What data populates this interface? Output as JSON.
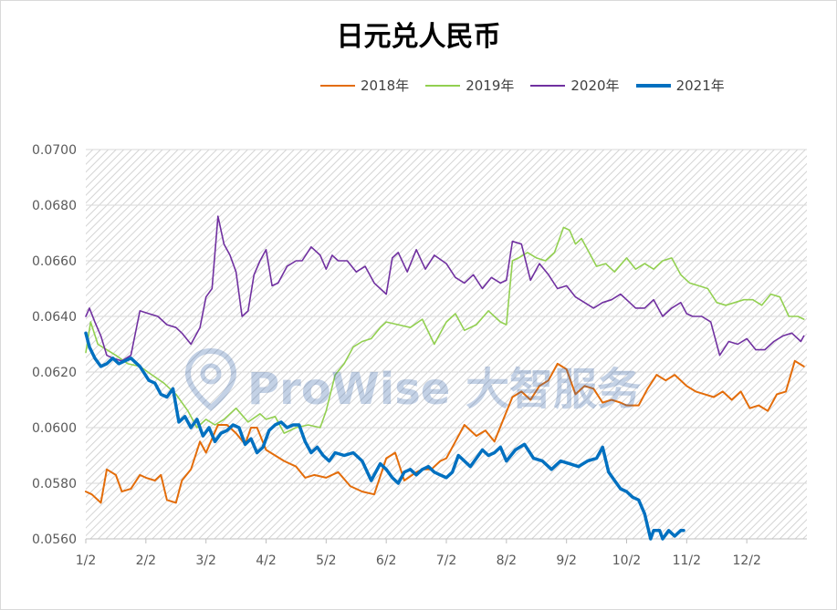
{
  "chart_data": {
    "type": "line",
    "title": "日元兑人民币",
    "xlabel": "",
    "ylabel": "",
    "ylim": [
      0.056,
      0.07
    ],
    "yticks": [
      "0.0560",
      "0.0580",
      "0.0600",
      "0.0620",
      "0.0640",
      "0.0660",
      "0.0680",
      "0.0700"
    ],
    "ytick_values": [
      0.056,
      0.058,
      0.06,
      0.062,
      0.064,
      0.066,
      0.068,
      0.07
    ],
    "xlim": [
      0,
      12
    ],
    "x_ticks": [
      "1/2",
      "2/2",
      "3/2",
      "4/2",
      "5/2",
      "6/2",
      "7/2",
      "8/2",
      "9/2",
      "10/2",
      "11/2",
      "12/2"
    ],
    "x_tick_values": [
      0,
      1,
      2,
      3,
      4,
      5,
      6,
      7,
      8,
      9,
      10,
      11
    ],
    "grid": true,
    "legend_position": "top",
    "series": [
      {
        "name": "2018年",
        "color": "#e36c09",
        "width": 2,
        "x": [
          0,
          0.1,
          0.25,
          0.35,
          0.5,
          0.6,
          0.75,
          0.9,
          1.0,
          1.15,
          1.25,
          1.35,
          1.5,
          1.6,
          1.75,
          1.9,
          2.0,
          2.1,
          2.2,
          2.35,
          2.5,
          2.65,
          2.75,
          2.85,
          3.0,
          3.15,
          3.3,
          3.5,
          3.65,
          3.8,
          4.0,
          4.2,
          4.4,
          4.6,
          4.8,
          5.0,
          5.15,
          5.3,
          5.5,
          5.6,
          5.75,
          5.9,
          6.0,
          6.15,
          6.3,
          6.5,
          6.65,
          6.8,
          6.95,
          7.1,
          7.25,
          7.4,
          7.55,
          7.7,
          7.85,
          8.0,
          8.15,
          8.3,
          8.45,
          8.6,
          8.75,
          8.9,
          9.0,
          9.2,
          9.35,
          9.5,
          9.65,
          9.8,
          10.0,
          10.15,
          10.3,
          10.45,
          10.6,
          10.75,
          10.9,
          11.05,
          11.2,
          11.35,
          11.5,
          11.65,
          11.8,
          11.95
        ],
        "y": [
          0.0577,
          0.0576,
          0.0573,
          0.0585,
          0.0583,
          0.0577,
          0.0578,
          0.0583,
          0.0582,
          0.0581,
          0.0583,
          0.0574,
          0.0573,
          0.0581,
          0.0585,
          0.0595,
          0.0591,
          0.0596,
          0.0601,
          0.0601,
          0.0598,
          0.0594,
          0.06,
          0.06,
          0.0592,
          0.059,
          0.0588,
          0.0586,
          0.0582,
          0.0583,
          0.0582,
          0.0584,
          0.0579,
          0.0577,
          0.0576,
          0.0589,
          0.0591,
          0.0581,
          0.0584,
          0.0585,
          0.0585,
          0.0588,
          0.0589,
          0.0595,
          0.0601,
          0.0597,
          0.0599,
          0.0595,
          0.0603,
          0.0611,
          0.0613,
          0.061,
          0.0615,
          0.0617,
          0.0623,
          0.0621,
          0.0612,
          0.0615,
          0.0614,
          0.0609,
          0.061,
          0.0609,
          0.0608,
          0.0608,
          0.0614,
          0.0619,
          0.0617,
          0.0619,
          0.0615,
          0.0613,
          0.0612,
          0.0611,
          0.0613,
          0.061,
          0.0613,
          0.0607,
          0.0608,
          0.0606,
          0.0612,
          0.0613,
          0.0624,
          0.0622
        ]
      },
      {
        "name": "2019年",
        "color": "#92d050",
        "width": 1.6,
        "x": [
          0,
          0.08,
          0.2,
          0.35,
          0.5,
          0.7,
          0.9,
          1.1,
          1.3,
          1.5,
          1.7,
          1.85,
          2.0,
          2.15,
          2.3,
          2.5,
          2.7,
          2.9,
          3.0,
          3.15,
          3.3,
          3.5,
          3.7,
          3.9,
          4.0,
          4.15,
          4.3,
          4.45,
          4.6,
          4.75,
          4.9,
          5.0,
          5.2,
          5.4,
          5.6,
          5.8,
          6.0,
          6.15,
          6.3,
          6.5,
          6.7,
          6.9,
          7.0,
          7.1,
          7.2,
          7.35,
          7.5,
          7.65,
          7.8,
          7.95,
          8.05,
          8.15,
          8.25,
          8.35,
          8.5,
          8.65,
          8.8,
          9.0,
          9.15,
          9.3,
          9.45,
          9.6,
          9.75,
          9.9,
          10.05,
          10.2,
          10.35,
          10.5,
          10.65,
          10.8,
          10.95,
          11.1,
          11.25,
          11.4,
          11.55,
          11.7,
          11.85,
          11.95
        ],
        "y": [
          0.0627,
          0.0638,
          0.063,
          0.0628,
          0.0626,
          0.0623,
          0.0622,
          0.0619,
          0.0616,
          0.0612,
          0.0606,
          0.06,
          0.0603,
          0.0601,
          0.0603,
          0.0607,
          0.0602,
          0.0605,
          0.0603,
          0.0604,
          0.0598,
          0.06,
          0.0601,
          0.06,
          0.0606,
          0.0619,
          0.0623,
          0.0629,
          0.0631,
          0.0632,
          0.0636,
          0.0638,
          0.0637,
          0.0636,
          0.0639,
          0.063,
          0.0638,
          0.0641,
          0.0635,
          0.0637,
          0.0642,
          0.0638,
          0.0637,
          0.066,
          0.0661,
          0.0663,
          0.0661,
          0.066,
          0.0663,
          0.0672,
          0.0671,
          0.0666,
          0.0668,
          0.0664,
          0.0658,
          0.0659,
          0.0656,
          0.0661,
          0.0657,
          0.0659,
          0.0657,
          0.066,
          0.0661,
          0.0655,
          0.0652,
          0.0651,
          0.065,
          0.0645,
          0.0644,
          0.0645,
          0.0646,
          0.0646,
          0.0644,
          0.0648,
          0.0647,
          0.064,
          0.064,
          0.0639
        ]
      },
      {
        "name": "2020年",
        "color": "#7030a0",
        "width": 1.6,
        "x": [
          0,
          0.06,
          0.15,
          0.25,
          0.35,
          0.45,
          0.6,
          0.75,
          0.9,
          1.05,
          1.2,
          1.35,
          1.5,
          1.6,
          1.75,
          1.9,
          2.0,
          2.1,
          2.2,
          2.3,
          2.4,
          2.5,
          2.6,
          2.7,
          2.8,
          2.9,
          3.0,
          3.1,
          3.2,
          3.35,
          3.5,
          3.6,
          3.75,
          3.9,
          4.0,
          4.1,
          4.2,
          4.35,
          4.5,
          4.65,
          4.8,
          5.0,
          5.1,
          5.2,
          5.35,
          5.5,
          5.65,
          5.8,
          6.0,
          6.15,
          6.3,
          6.45,
          6.6,
          6.75,
          6.9,
          7.0,
          7.1,
          7.25,
          7.4,
          7.55,
          7.7,
          7.85,
          8.0,
          8.15,
          8.3,
          8.45,
          8.6,
          8.75,
          8.9,
          9.0,
          9.15,
          9.3,
          9.45,
          9.6,
          9.75,
          9.9,
          10.0,
          10.1,
          10.25,
          10.4,
          10.55,
          10.7,
          10.85,
          11.0,
          11.15,
          11.3,
          11.45,
          11.6,
          11.75,
          11.9,
          11.95
        ],
        "y": [
          0.064,
          0.0643,
          0.0638,
          0.0633,
          0.0626,
          0.0625,
          0.0624,
          0.0626,
          0.0642,
          0.0641,
          0.064,
          0.0637,
          0.0636,
          0.0634,
          0.063,
          0.0636,
          0.0647,
          0.065,
          0.0676,
          0.0666,
          0.0662,
          0.0656,
          0.064,
          0.0642,
          0.0655,
          0.066,
          0.0664,
          0.0651,
          0.0652,
          0.0658,
          0.066,
          0.066,
          0.0665,
          0.0662,
          0.0657,
          0.0662,
          0.066,
          0.066,
          0.0656,
          0.0658,
          0.0652,
          0.0648,
          0.0661,
          0.0663,
          0.0656,
          0.0664,
          0.0657,
          0.0662,
          0.0659,
          0.0654,
          0.0652,
          0.0655,
          0.065,
          0.0654,
          0.0652,
          0.0653,
          0.0667,
          0.0666,
          0.0653,
          0.0659,
          0.0655,
          0.065,
          0.0651,
          0.0647,
          0.0645,
          0.0643,
          0.0645,
          0.0646,
          0.0648,
          0.0646,
          0.0643,
          0.0643,
          0.0646,
          0.064,
          0.0643,
          0.0645,
          0.0641,
          0.064,
          0.064,
          0.0638,
          0.0626,
          0.0631,
          0.063,
          0.0632,
          0.0628,
          0.0628,
          0.0631,
          0.0633,
          0.0634,
          0.0631,
          0.0633
        ]
      },
      {
        "name": "2021年",
        "color": "#0070c0",
        "width": 3.5,
        "x": [
          0,
          0.06,
          0.15,
          0.25,
          0.35,
          0.45,
          0.55,
          0.65,
          0.75,
          0.9,
          1.05,
          1.15,
          1.25,
          1.35,
          1.45,
          1.55,
          1.65,
          1.75,
          1.85,
          1.95,
          2.05,
          2.15,
          2.25,
          2.35,
          2.45,
          2.55,
          2.65,
          2.75,
          2.85,
          2.95,
          3.05,
          3.15,
          3.25,
          3.35,
          3.45,
          3.55,
          3.65,
          3.75,
          3.85,
          3.95,
          4.05,
          4.15,
          4.3,
          4.45,
          4.6,
          4.75,
          4.9,
          5.0,
          5.1,
          5.2,
          5.3,
          5.4,
          5.5,
          5.6,
          5.7,
          5.8,
          5.9,
          6.0,
          6.1,
          6.2,
          6.3,
          6.4,
          6.5,
          6.6,
          6.7,
          6.8,
          6.9,
          7.0,
          7.15,
          7.3,
          7.45,
          7.6,
          7.75,
          7.9,
          8.05,
          8.2,
          8.35,
          8.5,
          8.6,
          8.7,
          8.8,
          8.9,
          9.0,
          9.1,
          9.2,
          9.3,
          9.4,
          9.45,
          9.55,
          9.6,
          9.7,
          9.8,
          9.9,
          9.95
        ],
        "y": [
          0.0634,
          0.0629,
          0.0625,
          0.0622,
          0.0623,
          0.0625,
          0.0623,
          0.0624,
          0.0625,
          0.0622,
          0.0617,
          0.0616,
          0.0612,
          0.0611,
          0.0614,
          0.0602,
          0.0604,
          0.06,
          0.0603,
          0.0597,
          0.06,
          0.0595,
          0.0598,
          0.0599,
          0.0601,
          0.06,
          0.0594,
          0.0596,
          0.0591,
          0.0593,
          0.0599,
          0.0601,
          0.0602,
          0.06,
          0.0601,
          0.0601,
          0.0595,
          0.0591,
          0.0593,
          0.059,
          0.0588,
          0.0591,
          0.059,
          0.0591,
          0.0588,
          0.0581,
          0.0587,
          0.0585,
          0.0582,
          0.058,
          0.0584,
          0.0585,
          0.0583,
          0.0585,
          0.0586,
          0.0584,
          0.0583,
          0.0582,
          0.0584,
          0.059,
          0.0588,
          0.0586,
          0.0589,
          0.0592,
          0.059,
          0.0591,
          0.0593,
          0.0588,
          0.0592,
          0.0594,
          0.0589,
          0.0588,
          0.0585,
          0.0588,
          0.0587,
          0.0586,
          0.0588,
          0.0589,
          0.0593,
          0.0584,
          0.0581,
          0.0578,
          0.0577,
          0.0575,
          0.0574,
          0.0569,
          0.056,
          0.0563,
          0.0563,
          0.056,
          0.0563,
          0.0561,
          0.0563,
          0.0563
        ]
      }
    ]
  },
  "watermark": {
    "text": "ProWise 大智服务"
  }
}
